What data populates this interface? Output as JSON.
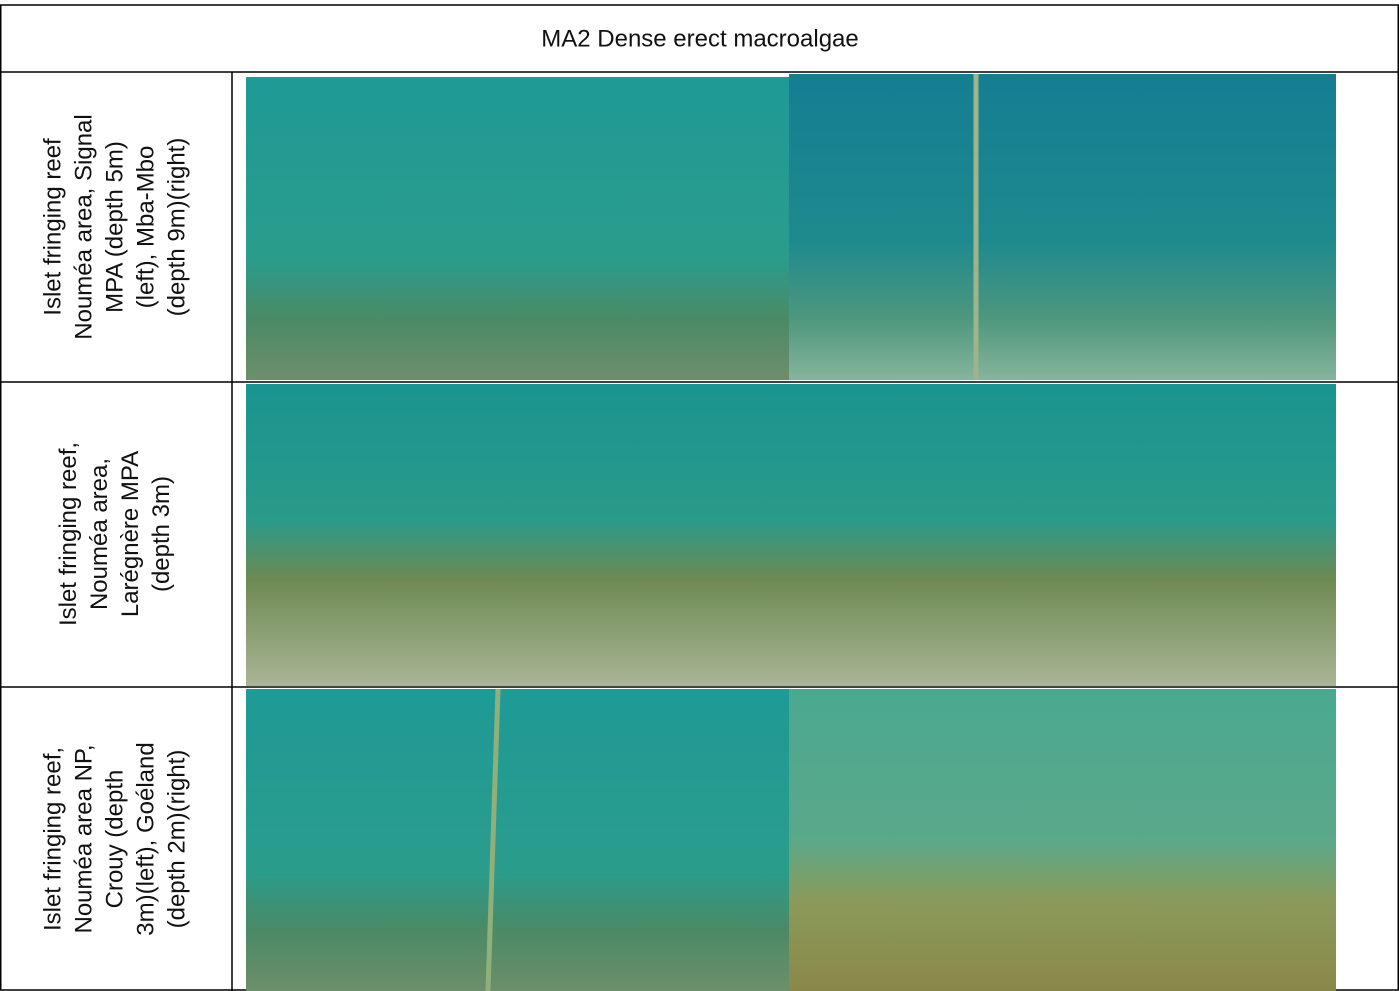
{
  "table": {
    "title": "MA2 Dense erect macroalgae",
    "rows": [
      {
        "label": [
          "Islet fringing reef",
          "Nouméa area, Signal",
          "MPA (depth 5m)",
          "(left), Mba-Mbo",
          "(depth 9m)(right)"
        ]
      },
      {
        "label": [
          "Islet fringing reef,",
          "Nouméa area,",
          "Larégnère MPA",
          "(depth 3m)"
        ]
      },
      {
        "label": [
          "Islet fringing reef,",
          "Nouméa area NP,",
          "Crouy (depth",
          "3m)(left), Goéland",
          "(depth 2m)(right)"
        ]
      }
    ]
  }
}
